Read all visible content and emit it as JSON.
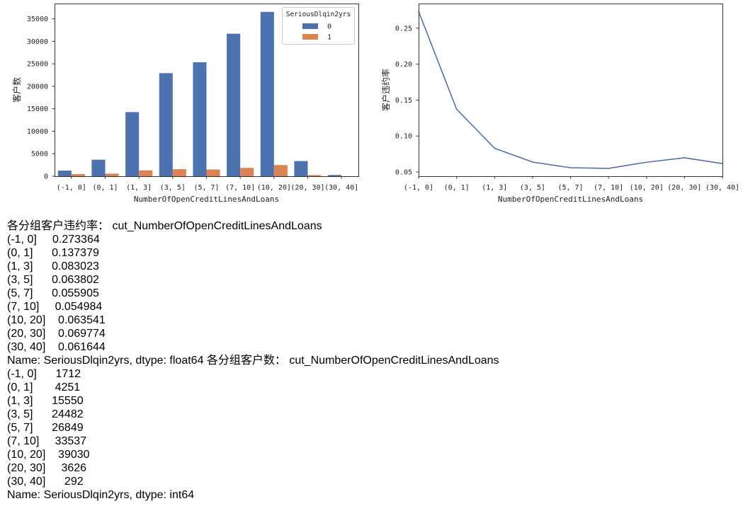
{
  "chart_data": [
    {
      "type": "bar",
      "categories": [
        "(-1, 0]",
        "(0, 1]",
        "(1, 3]",
        "(3, 5]",
        "(5, 7]",
        "(7, 10]",
        "(10, 20]",
        "(20, 30]",
        "(30, 40]"
      ],
      "series": [
        {
          "name": "0",
          "values": [
            1244,
            3667,
            14259,
            22920,
            25348,
            31693,
            36550,
            3373,
            274
          ]
        },
        {
          "name": "1",
          "values": [
            468,
            584,
            1291,
            1562,
            1501,
            1844,
            2480,
            253,
            18
          ]
        }
      ],
      "colors": [
        "#4c72b0",
        "#dd8452"
      ],
      "xlabel": "NumberOfOpenCreditLinesAndLoans",
      "ylabel": "客户数",
      "yticks": [
        0,
        5000,
        10000,
        15000,
        20000,
        25000,
        30000,
        35000
      ],
      "ylim": [
        0,
        38400
      ],
      "grid": false,
      "legend": {
        "title": "SeriousDlqin2yrs",
        "placement": "upper right"
      }
    },
    {
      "type": "line",
      "categories": [
        "(-1, 0]",
        "(0, 1]",
        "(1, 3]",
        "(3, 5]",
        "(5, 7]",
        "(7, 10]",
        "(10, 20]",
        "(20, 30]",
        "(30, 40]"
      ],
      "values": [
        0.273364,
        0.137379,
        0.083023,
        0.063802,
        0.055905,
        0.054984,
        0.063541,
        0.069774,
        0.061644
      ],
      "color": "#4c72b0",
      "xlabel": "NumberOfOpenCreditLinesAndLoans",
      "ylabel": "客户违约率",
      "yticks": [
        "0.05",
        "0.10",
        "0.15",
        "0.20",
        "0.25"
      ],
      "ylim": [
        0.0441,
        0.2843
      ],
      "grid": false
    }
  ],
  "output": {
    "lines": [
      "各分组客户违约率： cut_NumberOfOpenCreditLinesAndLoans",
      "(-1, 0]     0.273364",
      "(0, 1]      0.137379",
      "(1, 3]      0.083023",
      "(3, 5]      0.063802",
      "(5, 7]      0.055905",
      "(7, 10]     0.054984",
      "(10, 20]    0.063541",
      "(20, 30]    0.069774",
      "(30, 40]    0.061644",
      "Name: SeriousDlqin2yrs, dtype: float64 各分组客户数： cut_NumberOfOpenCreditLinesAndLoans",
      "(-1, 0]      1712",
      "(0, 1]       4251",
      "(1, 3]      15550",
      "(3, 5]      24482",
      "(5, 7]      26849",
      "(7, 10]     33537",
      "(10, 20]    39030",
      "(20, 30]     3626",
      "(30, 40]      292",
      "Name: SeriousDlqin2yrs, dtype: int64"
    ]
  }
}
